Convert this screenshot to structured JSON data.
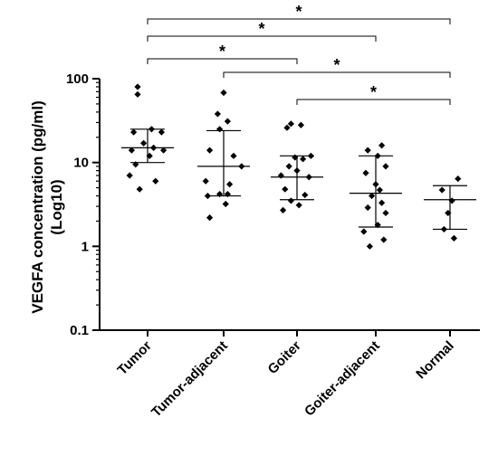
{
  "chart_data": {
    "type": "scatter",
    "ylabel_line1": "VEGFA concentration (pg/ml)",
    "ylabel_line2": "(Log10)",
    "yscale": "log",
    "ylim": [
      0.1,
      100
    ],
    "yticks": [
      {
        "value": 0.1,
        "label": "0.1"
      },
      {
        "value": 1,
        "label": "1"
      },
      {
        "value": 10,
        "label": "10"
      },
      {
        "value": 100,
        "label": "100"
      }
    ],
    "grid": false,
    "categories": [
      "Tumor",
      "Tumor-adjacent",
      "Goiter",
      "Goiter-adjacent",
      "Normal"
    ],
    "groups": [
      {
        "category": "Tumor",
        "median": 15,
        "q1": 10,
        "q3": 25,
        "points": [
          {
            "dx": -0.5,
            "value": 80
          },
          {
            "dx": -0.5,
            "value": 65
          },
          {
            "dx": 0.2,
            "value": 25
          },
          {
            "dx": -0.7,
            "value": 23
          },
          {
            "dx": 0.7,
            "value": 23
          },
          {
            "dx": -0.2,
            "value": 17
          },
          {
            "dx": 0.3,
            "value": 15
          },
          {
            "dx": -0.8,
            "value": 14
          },
          {
            "dx": 0.8,
            "value": 14
          },
          {
            "dx": 0.1,
            "value": 12
          },
          {
            "dx": -0.6,
            "value": 9.5
          },
          {
            "dx": -0.9,
            "value": 7
          },
          {
            "dx": 0.4,
            "value": 6
          },
          {
            "dx": -0.4,
            "value": 4.8
          }
        ]
      },
      {
        "category": "Tumor-adjacent",
        "median": 9,
        "q1": 4,
        "q3": 24,
        "points": [
          {
            "dx": 0,
            "value": 68
          },
          {
            "dx": -0.3,
            "value": 38
          },
          {
            "dx": 0.2,
            "value": 31
          },
          {
            "dx": -0.2,
            "value": 25
          },
          {
            "dx": -0.7,
            "value": 14
          },
          {
            "dx": 0.5,
            "value": 12
          },
          {
            "dx": 0.9,
            "value": 9
          },
          {
            "dx": -0.9,
            "value": 6
          },
          {
            "dx": 0.3,
            "value": 5.5
          },
          {
            "dx": -0.2,
            "value": 4.2
          },
          {
            "dx": 0.2,
            "value": 4.2
          },
          {
            "dx": -0.8,
            "value": 4
          },
          {
            "dx": 0.1,
            "value": 3.2
          },
          {
            "dx": -0.7,
            "value": 2.2
          }
        ]
      },
      {
        "category": "Goiter",
        "median": 6.7,
        "q1": 3.6,
        "q3": 12,
        "points": [
          {
            "dx": -0.3,
            "value": 29
          },
          {
            "dx": 0.2,
            "value": 28
          },
          {
            "dx": -0.5,
            "value": 26
          },
          {
            "dx": 0.7,
            "value": 12
          },
          {
            "dx": -0.1,
            "value": 11.5
          },
          {
            "dx": 0.3,
            "value": 11
          },
          {
            "dx": -0.4,
            "value": 9
          },
          {
            "dx": 0,
            "value": 8
          },
          {
            "dx": -0.8,
            "value": 7
          },
          {
            "dx": 0.6,
            "value": 6.7
          },
          {
            "dx": -0.6,
            "value": 4.8
          },
          {
            "dx": 0.4,
            "value": 4.1
          },
          {
            "dx": -0.3,
            "value": 3.5
          },
          {
            "dx": 0.1,
            "value": 3.1
          },
          {
            "dx": -0.7,
            "value": 2.7
          }
        ]
      },
      {
        "category": "Goiter-adjacent",
        "median": 4.3,
        "q1": 1.7,
        "q3": 12,
        "points": [
          {
            "dx": 0.3,
            "value": 16
          },
          {
            "dx": -0.4,
            "value": 14
          },
          {
            "dx": 0.1,
            "value": 12
          },
          {
            "dx": 0.5,
            "value": 9
          },
          {
            "dx": -0.5,
            "value": 7.5
          },
          {
            "dx": 0,
            "value": 5.5
          },
          {
            "dx": 0.2,
            "value": 4.7
          },
          {
            "dx": -0.2,
            "value": 4
          },
          {
            "dx": 0.3,
            "value": 3.3
          },
          {
            "dx": -0.4,
            "value": 2.9
          },
          {
            "dx": 0.5,
            "value": 2.5
          },
          {
            "dx": 0.1,
            "value": 1.8
          },
          {
            "dx": -0.6,
            "value": 1.5
          },
          {
            "dx": 0.4,
            "value": 1.2
          },
          {
            "dx": -0.3,
            "value": 1
          }
        ]
      },
      {
        "category": "Normal",
        "median": 3.6,
        "q1": 1.6,
        "q3": 5.3,
        "points": [
          {
            "dx": 0.4,
            "value": 6.4
          },
          {
            "dx": -0.4,
            "value": 4.7
          },
          {
            "dx": 0.1,
            "value": 3.5
          },
          {
            "dx": -0.1,
            "value": 2.5
          },
          {
            "dx": -0.3,
            "value": 1.6
          },
          {
            "dx": 0.2,
            "value": 1.25
          }
        ]
      }
    ],
    "significance": [
      {
        "from": "Tumor",
        "to": "Normal",
        "label": "*"
      },
      {
        "from": "Tumor",
        "to": "Goiter-adjacent",
        "label": "*"
      },
      {
        "from": "Tumor",
        "to": "Goiter",
        "label": "*"
      },
      {
        "from": "Tumor-adjacent",
        "to": "Normal",
        "label": "*"
      },
      {
        "from": "Goiter",
        "to": "Normal",
        "label": "*"
      }
    ]
  }
}
